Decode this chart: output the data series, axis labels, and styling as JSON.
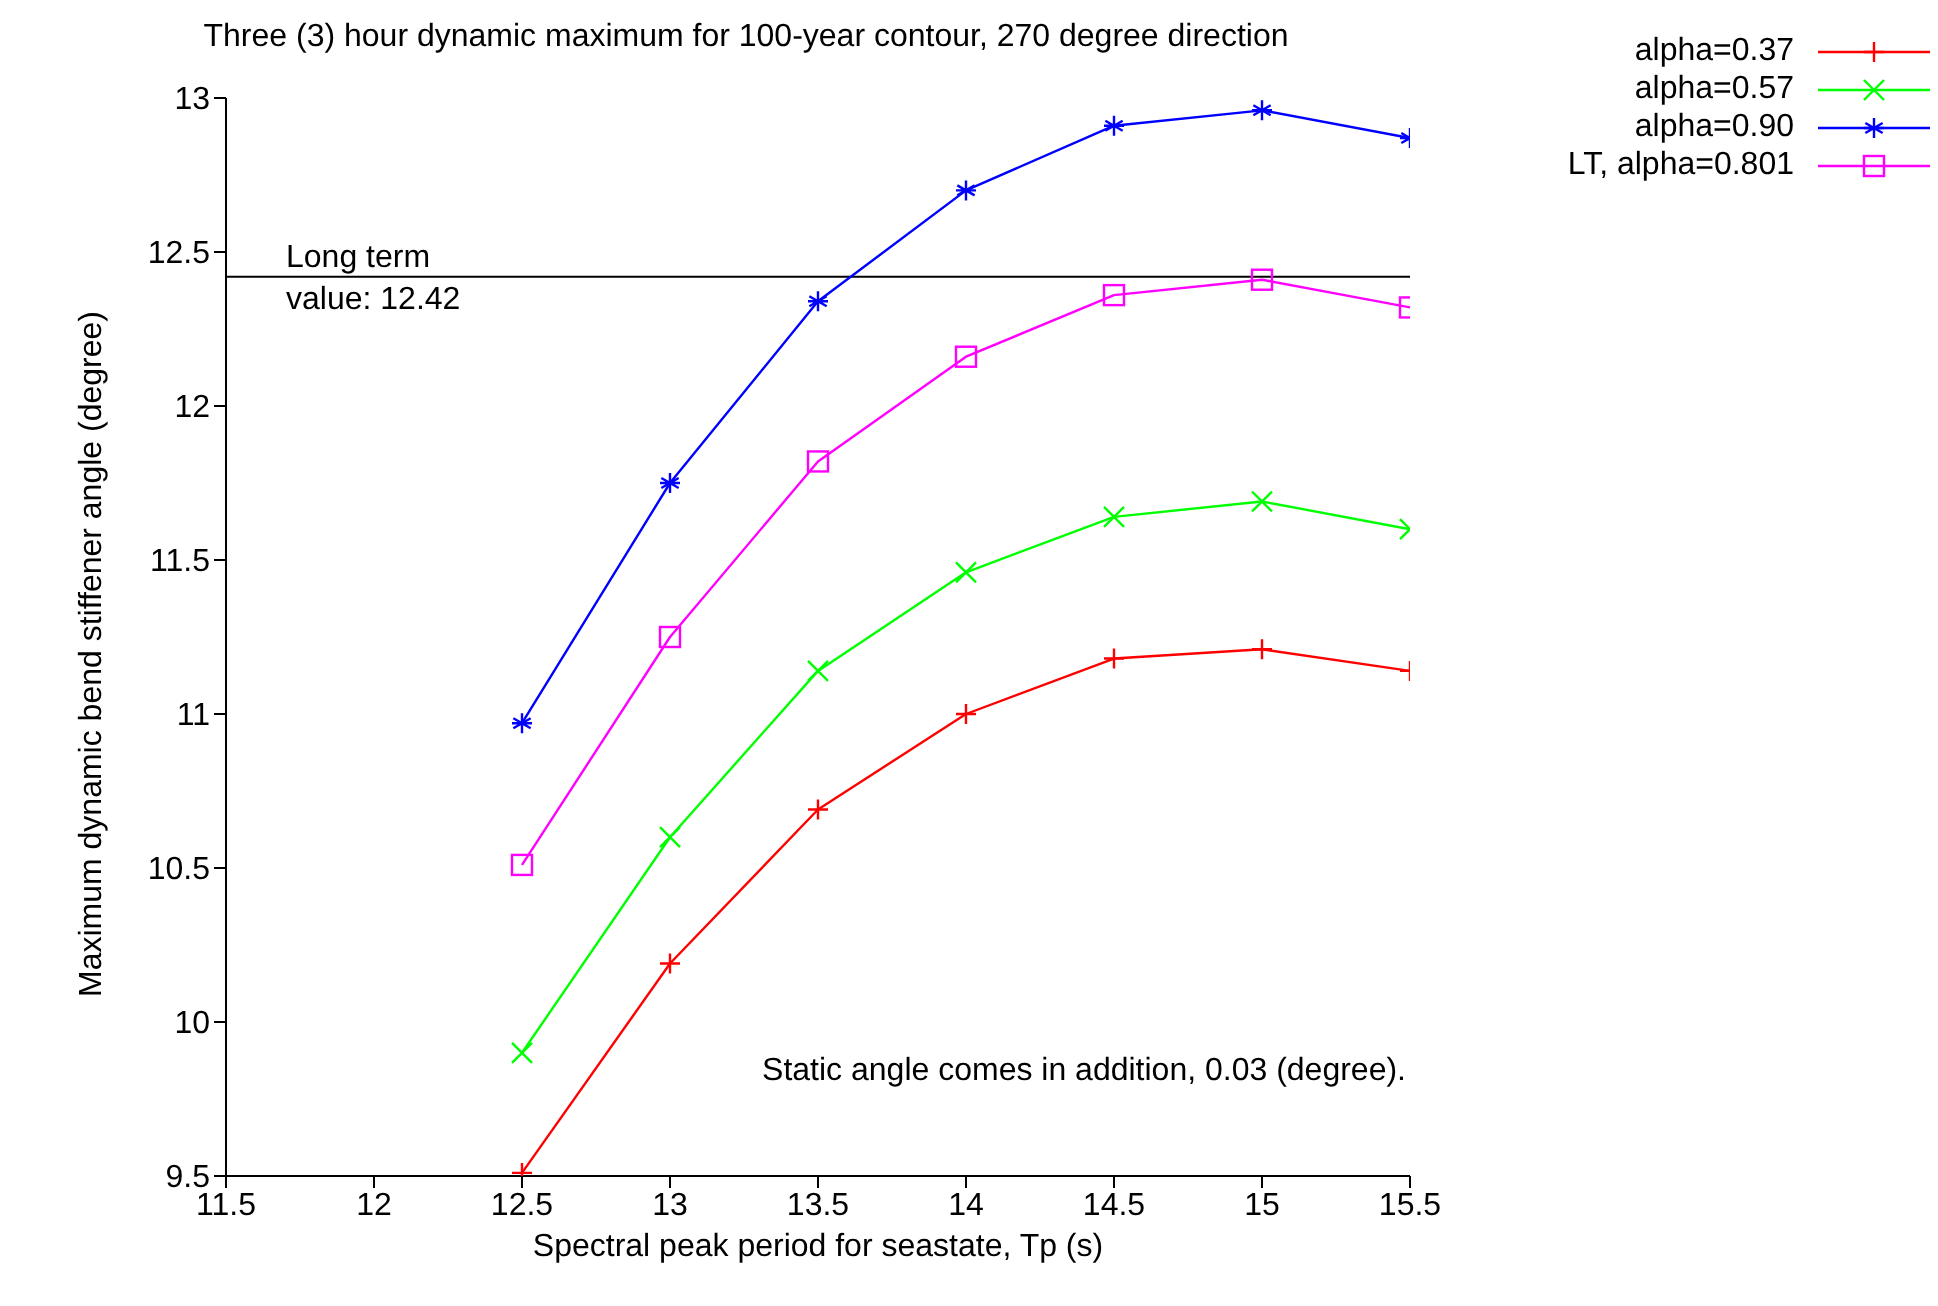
{
  "chart_data": {
    "type": "line",
    "title": "Three (3) hour dynamic maximum for 100-year contour, 270 degree direction",
    "xlabel": "Spectral peak period for seastate, Tp (s)",
    "ylabel": "Maximum dynamic bend stiffener angle (degree)",
    "x": [
      12.5,
      13,
      13.5,
      14,
      14.5,
      15,
      15.5
    ],
    "series": [
      {
        "name": "alpha=0.37",
        "color": "#ff0000",
        "marker": "cross",
        "values": [
          9.51,
          10.19,
          10.69,
          11.0,
          11.18,
          11.21,
          11.14
        ]
      },
      {
        "name": "alpha=0.57",
        "color": "#00ff00",
        "marker": "cross",
        "values": [
          9.9,
          10.6,
          11.14,
          11.46,
          11.64,
          11.69,
          11.6
        ]
      },
      {
        "name": "alpha=0.90",
        "color": "#0000ff",
        "marker": "cross",
        "values": [
          10.97,
          11.75,
          12.34,
          12.7,
          12.91,
          12.96,
          12.87
        ]
      },
      {
        "name": "LT, alpha=0.801",
        "color": "#ff00ff",
        "marker": "square",
        "values": [
          10.51,
          11.25,
          11.82,
          12.16,
          12.36,
          12.41,
          12.32
        ]
      }
    ],
    "xlim": [
      11.5,
      15.5
    ],
    "xticks": [
      11.5,
      12,
      12.5,
      13,
      13.5,
      14,
      14.5,
      15,
      15.5
    ],
    "ylim": [
      9.5,
      13
    ],
    "yticks": [
      9.5,
      10,
      10.5,
      11,
      11.5,
      12,
      12.5,
      13
    ],
    "ref_lines": [
      {
        "axis": "y",
        "value": 12.42,
        "label": "Long term\nvalue: 12.42",
        "color": "#000000"
      }
    ],
    "annotations": [
      "Static angle comes in addition, 0.03 (degree)."
    ],
    "legend": "top right",
    "line_style": "solid"
  }
}
